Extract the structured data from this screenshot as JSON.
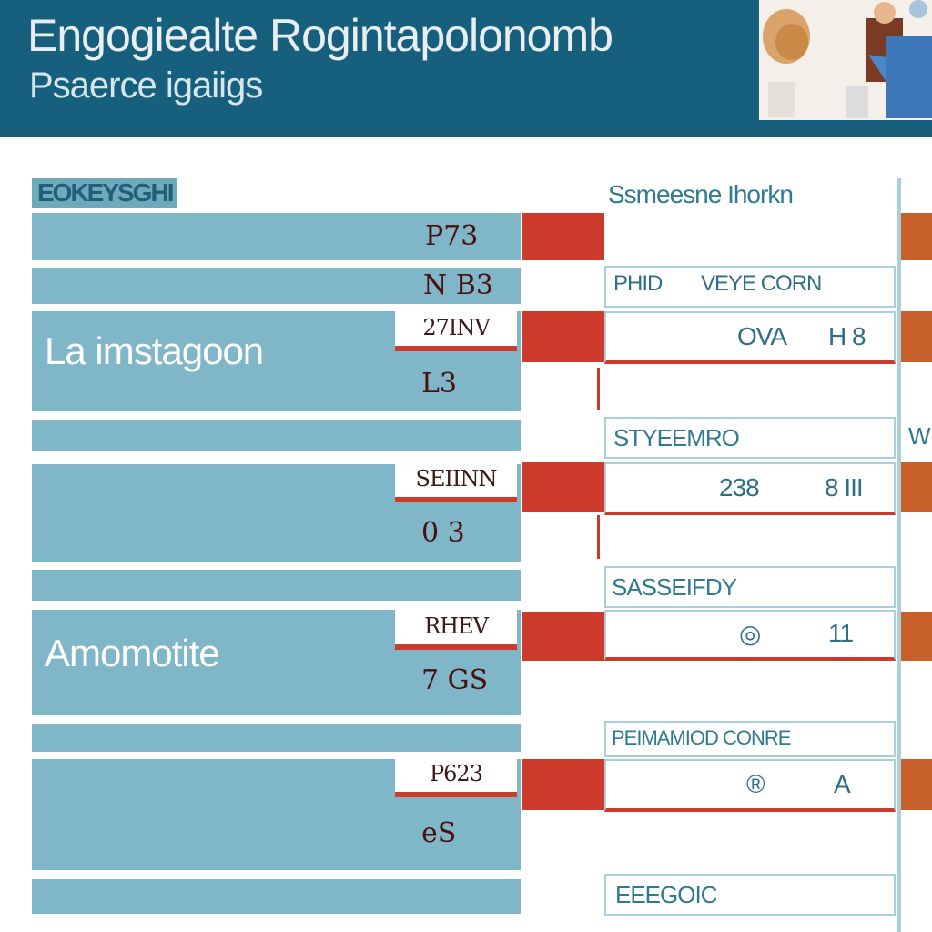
{
  "header": {
    "title": "Engogiealte Rogintapolonomb",
    "subtitle": "Psaerce igaiigs"
  },
  "left_title": "EOKEYSGHI",
  "right_title": "Ssmeesne Ihorkn",
  "left_rows": [
    {
      "value": "P73"
    },
    {
      "value": "N B3"
    },
    {
      "label": "La imstagoon",
      "tag": "27INV",
      "value": "L3"
    },
    {
      "label": "",
      "tag": "SEIINN",
      "value": "0 3"
    },
    {
      "label": "Amomotite",
      "tag": "RHEV",
      "value": "7 GS"
    },
    {
      "label": "",
      "tag": "P623",
      "value": "eS"
    }
  ],
  "right_rows": [
    {
      "a": "PHID",
      "b": "VEYE CORN"
    },
    {
      "a": "OVA",
      "b": "H 8"
    },
    {
      "a": "STYEEMRO",
      "b": ""
    },
    {
      "a": "238",
      "b": "8 III"
    },
    {
      "a": "SASSEIFDY",
      "b": ""
    },
    {
      "a": "◎",
      "b": "11"
    },
    {
      "a": "PEIMAMIOD CONRE",
      "b": ""
    },
    {
      "a": "®",
      "b": "A"
    },
    {
      "a": "EEEGOIC",
      "b": ""
    }
  ],
  "colors": {
    "header": "#17607d",
    "band": "#7fb7c8",
    "accent_red": "#cc3a2c",
    "edge_orange": "#c8602c"
  }
}
